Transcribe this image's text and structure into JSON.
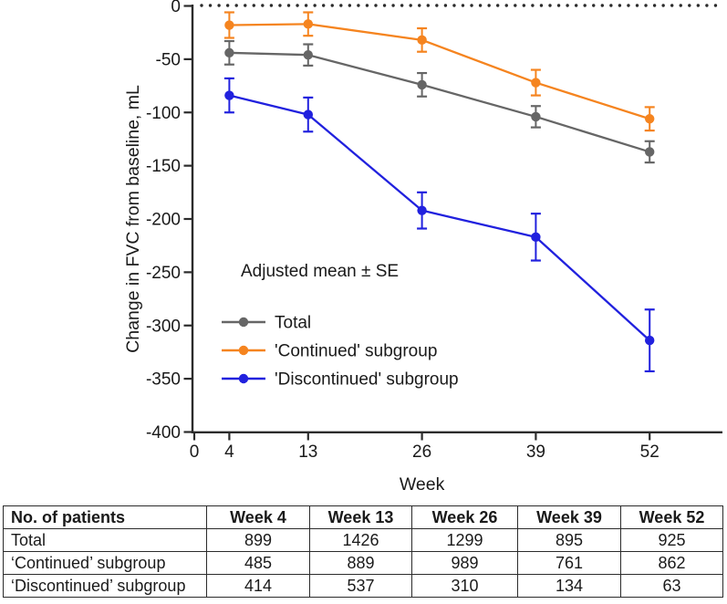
{
  "chart_data": {
    "type": "line",
    "x": [
      4,
      13,
      26,
      39,
      52
    ],
    "x_ticks": [
      0,
      4,
      13,
      26,
      39,
      52
    ],
    "xlabel": "Week",
    "ylabel": "Change in FVC from baseline, mL",
    "ylim": [
      -400,
      0
    ],
    "yticks": [
      0,
      -50,
      -100,
      -150,
      -200,
      -250,
      -300,
      -350,
      -400
    ],
    "zero_baseline": {
      "value": 0,
      "style": "dotted"
    },
    "annotation": "Adjusted mean ± SE",
    "legend_position": "inside-lower-left",
    "grid": false,
    "series": [
      {
        "name": "Total",
        "color": "#666666",
        "values": [
          -44,
          -46,
          -74,
          -104,
          -137
        ],
        "se": [
          11,
          10,
          11,
          10,
          10
        ]
      },
      {
        "name": "'Continued' subgroup",
        "color": "#F5841F",
        "values": [
          -18,
          -17,
          -32,
          -72,
          -106
        ],
        "se": [
          12,
          11,
          11,
          12,
          11
        ]
      },
      {
        "name": "'Discontinued' subgroup",
        "color": "#2121DE",
        "values": [
          -84,
          -102,
          -192,
          -217,
          -314
        ],
        "se": [
          16,
          16,
          17,
          22,
          29
        ]
      }
    ]
  },
  "table": {
    "headers": [
      "No. of patients",
      "Week 4",
      "Week 13",
      "Week 26",
      "Week 39",
      "Week 52"
    ],
    "rows": [
      {
        "label": "Total",
        "values": [
          "899",
          "1426",
          "1299",
          "895",
          "925"
        ]
      },
      {
        "label": "‘Continued’ subgroup",
        "values": [
          "485",
          "889",
          "989",
          "761",
          "862"
        ]
      },
      {
        "label": "‘Discontinued’ subgroup",
        "values": [
          "414",
          "537",
          "310",
          "134",
          "63"
        ]
      }
    ]
  },
  "colors": {
    "axis": "#2b2b2b",
    "text": "#1a1a1a",
    "total": "#666666",
    "continued": "#F5841F",
    "discontinued": "#2121DE"
  }
}
